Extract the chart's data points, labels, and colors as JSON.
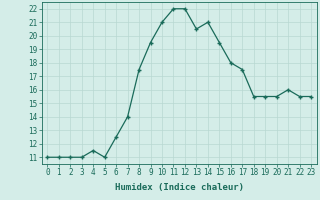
{
  "x": [
    0,
    1,
    2,
    3,
    4,
    5,
    6,
    7,
    8,
    9,
    10,
    11,
    12,
    13,
    14,
    15,
    16,
    17,
    18,
    19,
    20,
    21,
    22,
    23
  ],
  "y": [
    11,
    11,
    11,
    11,
    11.5,
    11,
    12.5,
    14,
    17.5,
    19.5,
    21,
    22,
    22,
    20.5,
    21,
    19.5,
    18,
    17.5,
    15.5,
    15.5,
    15.5,
    16,
    15.5,
    15.5
  ],
  "line_color": "#1a6b5a",
  "marker": "+",
  "marker_size": 3.5,
  "marker_linewidth": 1.0,
  "linewidth": 0.9,
  "xlabel": "Humidex (Indice chaleur)",
  "xlabel_fontsize": 6.5,
  "ylabel_ticks": [
    11,
    12,
    13,
    14,
    15,
    16,
    17,
    18,
    19,
    20,
    21,
    22
  ],
  "xlim": [
    -0.5,
    23.5
  ],
  "ylim": [
    10.5,
    22.5
  ],
  "bg_color": "#d4ede8",
  "grid_color": "#b8d8d2",
  "tick_fontsize": 5.5,
  "xtick_labels": [
    "0",
    "1",
    "2",
    "3",
    "4",
    "5",
    "6",
    "7",
    "8",
    "9",
    "10",
    "11",
    "12",
    "13",
    "14",
    "15",
    "16",
    "17",
    "18",
    "19",
    "20",
    "21",
    "22",
    "23"
  ]
}
